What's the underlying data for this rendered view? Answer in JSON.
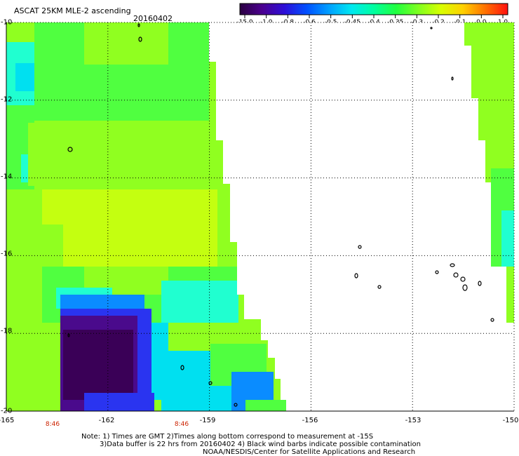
{
  "header": {
    "title": "ASCAT 25KM MLE-2 ascending",
    "date": "20160402"
  },
  "colorbar": {
    "ticks": [
      "-15.0",
      "-1.0",
      "-0.8",
      "-0.6",
      "-0.5",
      "-0.45",
      "-0.4",
      "-0.35",
      "-0.3",
      "-0.2",
      "-0.1",
      "0.0",
      "1.0"
    ],
    "colors": [
      "#2a0040",
      "#4b008f",
      "#2d0fd8",
      "#0050ff",
      "#00a0ff",
      "#00e8f0",
      "#00ffa0",
      "#20ff40",
      "#80ff20",
      "#d8ff00",
      "#ffd000",
      "#ff7000",
      "#ff1010"
    ]
  },
  "map": {
    "lat_labels": [
      "-10",
      "-12",
      "-14",
      "-16",
      "-18",
      "-20"
    ],
    "lon_labels": [
      "-165",
      "-162",
      "-159",
      "-156",
      "-153",
      "-150"
    ],
    "time_labels": [
      "8:46",
      "8:46"
    ],
    "swath_colors": {
      "deep_purple": "#3a0057",
      "violet": "#4a0a8c",
      "blue": "#2a34f0",
      "azure": "#0a8cff",
      "cyan": "#00e0f0",
      "aqua": "#20ffd0",
      "green": "#50ff40",
      "lime": "#90ff20",
      "yellow_green": "#c4ff10"
    }
  },
  "footer": {
    "line1": "Note: 1) Times are GMT 2)Times along bottom correspond to measurement at -15S",
    "line2": "3)Data buffer is 22 hrs from 20160402 4) Black wind barbs indicate possible contamination",
    "line3": "NOAA/NESDIS/Center for Satellite Applications and Research"
  }
}
